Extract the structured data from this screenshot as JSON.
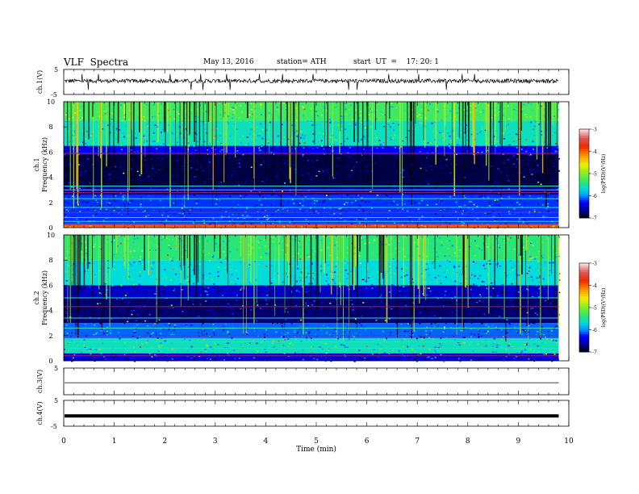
{
  "header": {
    "title": "VLF  Spectra",
    "date": "May 13, 2016",
    "station": "station= ATH",
    "start": "start  UT  =    17: 20: 1"
  },
  "chart_data": [
    {
      "type": "line",
      "panel": "ch1-waveform",
      "ylabel": "ch.1(V)",
      "ylim": [
        -5,
        5
      ],
      "yticks": [
        "5",
        "-5"
      ],
      "xlim": [
        0,
        10
      ],
      "note": "noisy waveform around ~0.5 V with sharp spikes"
    },
    {
      "type": "heatmap",
      "panel": "ch1-spectrogram",
      "ylabel": "Frequency (kHz)",
      "ylabel2": "ch.1",
      "ylim": [
        0,
        10
      ],
      "yticks": [
        "0",
        "2",
        "4",
        "6",
        "8",
        "10"
      ],
      "xlim": [
        0,
        9.8
      ],
      "colorbar": {
        "label": "log(PSD)(V²/Hz)",
        "ticks": [
          "-3",
          "-4",
          "-5",
          "-6",
          "-7"
        ],
        "range": [
          -7,
          -3
        ]
      },
      "frequency_profile": [
        {
          "f_khz": [
            0,
            0.3
          ],
          "level": -4.0
        },
        {
          "f_khz": [
            0.3,
            2.6
          ],
          "level": -6.2
        },
        {
          "f_khz": [
            2.6,
            3.2
          ],
          "level": -6.6
        },
        {
          "f_khz": [
            3.2,
            5.8
          ],
          "level": -6.85
        },
        {
          "f_khz": [
            5.8,
            6.5
          ],
          "level": -6.3
        },
        {
          "f_khz": [
            6.5,
            8.5
          ],
          "level": -5.6
        },
        {
          "f_khz": [
            8.5,
            10
          ],
          "level": -5.3
        }
      ],
      "lines_khz": [
        0.25,
        0.5,
        0.8,
        1.2,
        1.6,
        2.3,
        2.8,
        3.0,
        3.3,
        5.9
      ]
    },
    {
      "type": "heatmap",
      "panel": "ch2-spectrogram",
      "ylabel": "Frequency (kHz)",
      "ylabel2": "ch.2",
      "ylim": [
        0,
        10
      ],
      "yticks": [
        "0",
        "2",
        "4",
        "6",
        "8",
        "10"
      ],
      "xlim": [
        0,
        9.8
      ],
      "colorbar": {
        "label": "log(PSD)(V²/Hz)",
        "ticks": [
          "-3",
          "-4",
          "-5",
          "-6",
          "-7"
        ],
        "range": [
          -7,
          -3
        ]
      },
      "frequency_profile": [
        {
          "f_khz": [
            0,
            0.6
          ],
          "level": -6.4
        },
        {
          "f_khz": [
            0.6,
            1.8
          ],
          "level": -5.6
        },
        {
          "f_khz": [
            1.8,
            3.0
          ],
          "level": -6.1
        },
        {
          "f_khz": [
            3.0,
            5.0
          ],
          "level": -6.75
        },
        {
          "f_khz": [
            5.0,
            6.0
          ],
          "level": -6.5
        },
        {
          "f_khz": [
            6.0,
            8.0
          ],
          "level": -5.7
        },
        {
          "f_khz": [
            8.0,
            10
          ],
          "level": -5.4
        }
      ],
      "lines_khz": [
        0.4,
        1.0,
        1.5,
        2.0,
        2.6,
        3.4,
        4.3,
        5.0
      ]
    },
    {
      "type": "line",
      "panel": "ch3-waveform",
      "ylabel": "ch.3(V)",
      "ylim": [
        -5,
        5
      ],
      "yticks": [
        "5"
      ],
      "xlim": [
        0,
        10
      ],
      "note": "flat trace near -0.5 V"
    },
    {
      "type": "line",
      "panel": "ch4-waveform",
      "ylabel": "ch.4(V)",
      "ylim": [
        -5,
        5
      ],
      "yticks": [
        "5",
        "-5"
      ],
      "xlim": [
        0,
        10
      ],
      "note": "thick flat trace near -1 V"
    },
    {
      "type": "axis",
      "panel": "time-axis",
      "xlabel": "Time  (min)",
      "xticks": [
        "0",
        "1",
        "2",
        "3",
        "4",
        "5",
        "6",
        "7",
        "8",
        "9",
        "10"
      ],
      "xlim": [
        0,
        10
      ]
    }
  ]
}
